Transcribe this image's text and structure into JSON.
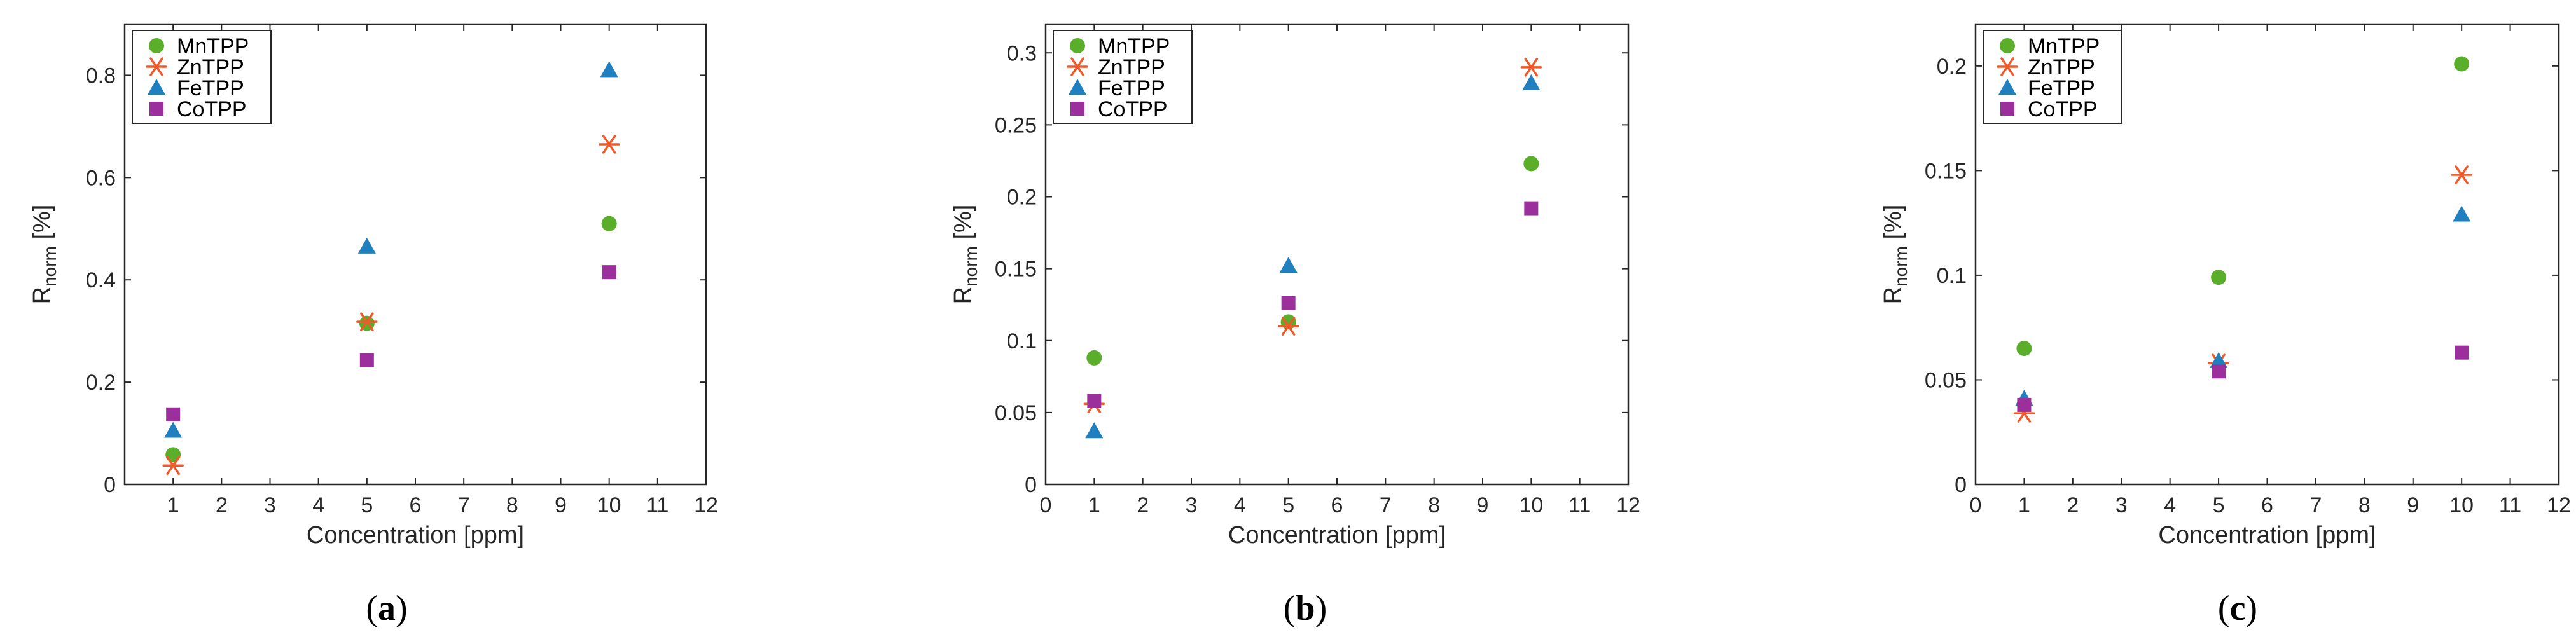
{
  "figure": {
    "marker_colors": {
      "MnTPP": "#5aae2a",
      "ZnTPP": "#f0592a",
      "FeTPP": "#1f7fbf",
      "CoTPP": "#9b2f9b"
    },
    "marker_shapes": {
      "MnTPP": "circle",
      "ZnTPP": "asterisk",
      "FeTPP": "triangle",
      "CoTPP": "square"
    }
  },
  "chart_data": [
    {
      "type": "scatter",
      "caption_letter": "a",
      "caption_open": "(",
      "caption_close": ")",
      "xlabel": "Concentration [ppm]",
      "ylabel_main": "R",
      "ylabel_sub": "norm",
      "ylabel_unit": " [%]",
      "xlim": [
        0,
        12
      ],
      "ylim": [
        0,
        0.9
      ],
      "xticks": [
        1,
        2,
        3,
        4,
        5,
        6,
        7,
        8,
        9,
        10,
        11,
        12
      ],
      "xtick_labels": [
        "1",
        "2",
        "3",
        "4",
        "5",
        "6",
        "7",
        "8",
        "9",
        "10",
        "11",
        "12"
      ],
      "yticks": [
        0,
        0.2,
        0.4,
        0.6,
        0.8
      ],
      "ytick_labels": [
        "0",
        "0.2",
        "0.4",
        "0.6",
        "0.8"
      ],
      "legend": [
        "MnTPP",
        "ZnTPP",
        "FeTPP",
        "CoTPP"
      ],
      "legend_position": "top-left",
      "series": [
        {
          "name": "MnTPP",
          "x": [
            1,
            5,
            10
          ],
          "y": [
            0.058,
            0.315,
            0.51
          ]
        },
        {
          "name": "ZnTPP",
          "x": [
            1,
            5,
            10
          ],
          "y": [
            0.037,
            0.318,
            0.665
          ]
        },
        {
          "name": "FeTPP",
          "x": [
            1,
            5,
            10
          ],
          "y": [
            0.105,
            0.465,
            0.81
          ]
        },
        {
          "name": "CoTPP",
          "x": [
            1,
            5,
            10
          ],
          "y": [
            0.137,
            0.243,
            0.415
          ]
        }
      ]
    },
    {
      "type": "scatter",
      "caption_letter": "b",
      "caption_open": "(",
      "caption_close": ")",
      "xlabel": "Concentration [ppm]",
      "ylabel_main": "R",
      "ylabel_sub": "norm",
      "ylabel_unit": " [%]",
      "xlim": [
        0,
        12
      ],
      "ylim": [
        0,
        0.32
      ],
      "xticks": [
        0,
        1,
        2,
        3,
        4,
        5,
        6,
        7,
        8,
        9,
        10,
        11,
        12
      ],
      "xtick_labels": [
        "0",
        "1",
        "2",
        "3",
        "4",
        "5",
        "6",
        "7",
        "8",
        "9",
        "10",
        "11",
        "12"
      ],
      "yticks": [
        0,
        0.05,
        0.1,
        0.15,
        0.2,
        0.25,
        0.3
      ],
      "ytick_labels": [
        "0",
        "0.05",
        "0.1",
        "0.15",
        "0.2",
        "0.25",
        "0.3"
      ],
      "legend": [
        "MnTPP",
        "ZnTPP",
        "FeTPP",
        "CoTPP"
      ],
      "legend_position": "top-left",
      "series": [
        {
          "name": "MnTPP",
          "x": [
            1,
            5,
            10
          ],
          "y": [
            0.088,
            0.113,
            0.223
          ]
        },
        {
          "name": "ZnTPP",
          "x": [
            1,
            5,
            10
          ],
          "y": [
            0.056,
            0.11,
            0.29
          ]
        },
        {
          "name": "FeTPP",
          "x": [
            1,
            5,
            10
          ],
          "y": [
            0.037,
            0.152,
            0.279
          ]
        },
        {
          "name": "CoTPP",
          "x": [
            1,
            5,
            10
          ],
          "y": [
            0.058,
            0.126,
            0.192
          ]
        }
      ]
    },
    {
      "type": "scatter",
      "caption_letter": "c",
      "caption_open": "(",
      "caption_close": ")",
      "xlabel": "Concentration [ppm]",
      "ylabel_main": "R",
      "ylabel_sub": "norm",
      "ylabel_unit": " [%]",
      "xlim": [
        0,
        12
      ],
      "ylim": [
        0,
        0.22
      ],
      "xticks": [
        0,
        1,
        2,
        3,
        4,
        5,
        6,
        7,
        8,
        9,
        10,
        11,
        12
      ],
      "xtick_labels": [
        "0",
        "1",
        "2",
        "3",
        "4",
        "5",
        "6",
        "7",
        "8",
        "9",
        "10",
        "11",
        "12"
      ],
      "yticks": [
        0,
        0.05,
        0.1,
        0.15,
        0.2
      ],
      "ytick_labels": [
        "0",
        "0.05",
        "0.1",
        "0.15",
        "0.2"
      ],
      "legend": [
        "MnTPP",
        "ZnTPP",
        "FeTPP",
        "CoTPP"
      ],
      "legend_position": "top-left",
      "series": [
        {
          "name": "MnTPP",
          "x": [
            1,
            5,
            10
          ],
          "y": [
            0.065,
            0.099,
            0.201
          ]
        },
        {
          "name": "ZnTPP",
          "x": [
            1,
            5,
            10
          ],
          "y": [
            0.034,
            0.058,
            0.148
          ]
        },
        {
          "name": "FeTPP",
          "x": [
            1,
            5,
            10
          ],
          "y": [
            0.041,
            0.059,
            0.129
          ]
        },
        {
          "name": "CoTPP",
          "x": [
            1,
            5,
            10
          ],
          "y": [
            0.038,
            0.054,
            0.063
          ]
        }
      ]
    }
  ]
}
